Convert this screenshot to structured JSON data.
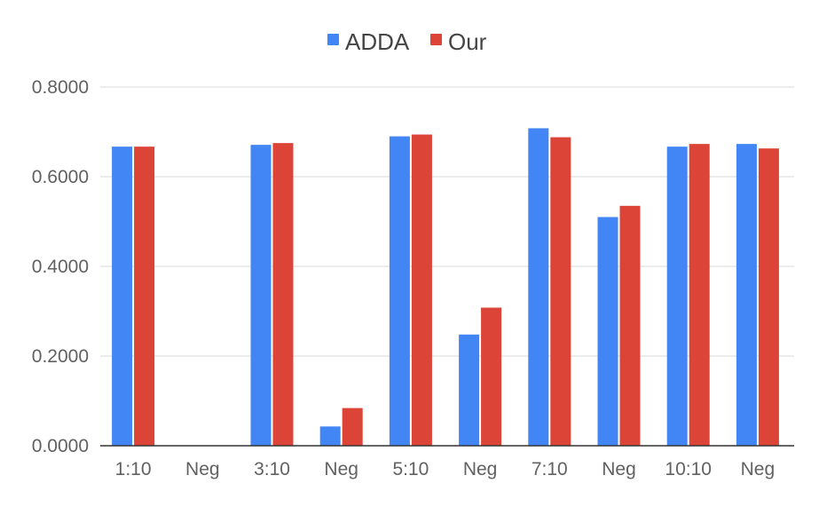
{
  "chart_data": {
    "type": "bar",
    "title": "",
    "xlabel": "",
    "ylabel": "",
    "ylim": [
      0,
      0.8
    ],
    "yticks": [
      "0.0000",
      "0.2000",
      "0.4000",
      "0.6000",
      "0.8000"
    ],
    "ytick_values": [
      0,
      0.2,
      0.4,
      0.6,
      0.8
    ],
    "categories": [
      "1:10",
      "Neg",
      "3:10",
      "Neg",
      "5:10",
      "Neg",
      "7:10",
      "Neg",
      "10:10",
      "Neg"
    ],
    "series": [
      {
        "name": "ADDA",
        "color": "#4285f4",
        "values": [
          0.667,
          0,
          0.671,
          0.043,
          0.69,
          0.248,
          0.708,
          0.51,
          0.667,
          0.673
        ]
      },
      {
        "name": "Our",
        "color": "#db4437",
        "values": [
          0.667,
          0,
          0.675,
          0.084,
          0.694,
          0.308,
          0.688,
          0.535,
          0.673,
          0.663
        ]
      }
    ],
    "legend_position": "top-center",
    "grid": true
  }
}
